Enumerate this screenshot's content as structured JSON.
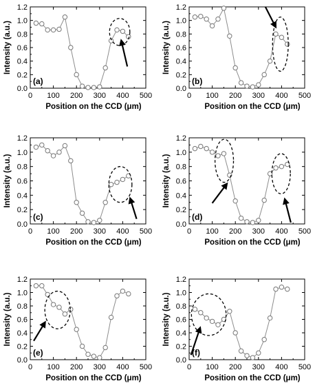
{
  "figure": {
    "tick_labels_x": [
      "0",
      "100",
      "200",
      "300",
      "400",
      "500"
    ],
    "tick_labels_y": [
      "0.0",
      "0.2",
      "0.4",
      "0.6",
      "0.8",
      "1.0",
      "1.2"
    ]
  },
  "chart_data": [
    {
      "type": "line",
      "panel_label": "(a)",
      "xlabel": "Position on the CCD (μm)",
      "ylabel": "Intensity (a.u.)",
      "xlim": [
        0,
        500
      ],
      "ylim": [
        0,
        1.2
      ],
      "grid": false,
      "series": [
        {
          "x": [
            25,
            50,
            75,
            100,
            125,
            150,
            175,
            200,
            225,
            250,
            275,
            300,
            325,
            350,
            375,
            400,
            425
          ],
          "y": [
            0.96,
            0.95,
            0.86,
            0.86,
            0.87,
            1.05,
            0.6,
            0.2,
            0.03,
            0.01,
            0.01,
            0.02,
            0.3,
            0.7,
            0.86,
            0.84,
            0.76
          ]
        }
      ],
      "annotations": [
        {
          "type": "ellipse",
          "cx": 387,
          "cy": 0.83,
          "rx": 44,
          "ry": 0.2
        },
        {
          "type": "arrow",
          "from": [
            420,
            0.32
          ],
          "to": [
            392,
            0.73
          ]
        }
      ]
    },
    {
      "type": "line",
      "panel_label": "(b)",
      "xlabel": "Position on the CCD (μm)",
      "ylabel": "Intensity (a.u.)",
      "xlim": [
        0,
        500
      ],
      "ylim": [
        0,
        1.2
      ],
      "grid": false,
      "series": [
        {
          "x": [
            25,
            50,
            75,
            100,
            125,
            150,
            175,
            200,
            225,
            250,
            275,
            300,
            325,
            350,
            375,
            400,
            425
          ],
          "y": [
            1.05,
            1.06,
            1.02,
            0.92,
            1.02,
            1.18,
            0.77,
            0.3,
            0.08,
            0.03,
            0.02,
            0.05,
            0.2,
            0.4,
            0.8,
            0.75,
            0.65
          ]
        }
      ],
      "annotations": [
        {
          "type": "ellipse",
          "cx": 395,
          "cy": 0.65,
          "rx": 34,
          "ry": 0.4
        },
        {
          "type": "arrow",
          "from": [
            330,
            1.2
          ],
          "to": [
            378,
            0.88
          ]
        }
      ]
    },
    {
      "type": "line",
      "panel_label": "(c)",
      "xlabel": "Position on the CCD (μm)",
      "ylabel": "Intensity (a.u.)",
      "xlim": [
        0,
        500
      ],
      "ylim": [
        0,
        1.2
      ],
      "grid": false,
      "series": [
        {
          "x": [
            25,
            50,
            75,
            100,
            125,
            150,
            175,
            200,
            225,
            250,
            275,
            300,
            325,
            350,
            375,
            400,
            425
          ],
          "y": [
            1.07,
            1.1,
            1.02,
            0.95,
            1.0,
            1.09,
            0.88,
            0.3,
            0.15,
            0.03,
            0.02,
            0.05,
            0.3,
            0.55,
            0.58,
            0.62,
            0.67
          ]
        }
      ],
      "annotations": [
        {
          "type": "ellipse",
          "cx": 390,
          "cy": 0.55,
          "rx": 50,
          "ry": 0.25
        },
        {
          "type": "arrow",
          "from": [
            460,
            0.07
          ],
          "to": [
            430,
            0.38
          ]
        }
      ]
    },
    {
      "type": "line",
      "panel_label": "(d)",
      "xlabel": "Position on the CCD (μm)",
      "ylabel": "Intensity (a.u.)",
      "xlim": [
        0,
        500
      ],
      "ylim": [
        0,
        1.2
      ],
      "grid": false,
      "series": [
        {
          "x": [
            25,
            50,
            75,
            100,
            125,
            150,
            175,
            200,
            225,
            250,
            275,
            300,
            325,
            350,
            375,
            400,
            425
          ],
          "y": [
            1.05,
            1.08,
            1.05,
            1.0,
            0.95,
            0.98,
            0.68,
            0.32,
            0.08,
            0.03,
            0.02,
            0.05,
            0.33,
            0.7,
            0.78,
            0.8,
            0.83
          ]
        }
      ],
      "annotations": [
        {
          "type": "ellipse",
          "cx": 152,
          "cy": 0.88,
          "rx": 40,
          "ry": 0.3
        },
        {
          "type": "arrow",
          "from": [
            100,
            0.29
          ],
          "to": [
            168,
            0.58
          ]
        },
        {
          "type": "ellipse",
          "cx": 398,
          "cy": 0.7,
          "rx": 40,
          "ry": 0.28
        },
        {
          "type": "arrow",
          "from": [
            440,
            0.02
          ],
          "to": [
            412,
            0.37
          ]
        }
      ]
    },
    {
      "type": "line",
      "panel_label": "(e)",
      "xlabel": "Position on the CCD (μm)",
      "ylabel": "Intensity (a.u.)",
      "xlim": [
        0,
        500
      ],
      "ylim": [
        0,
        1.2
      ],
      "grid": false,
      "series": [
        {
          "x": [
            25,
            50,
            75,
            100,
            125,
            150,
            175,
            200,
            225,
            250,
            275,
            300,
            325,
            350,
            375,
            400,
            425
          ],
          "y": [
            1.1,
            1.1,
            0.97,
            0.82,
            0.78,
            0.68,
            0.75,
            0.45,
            0.2,
            0.08,
            0.05,
            0.03,
            0.18,
            0.63,
            0.95,
            1.02,
            0.98
          ]
        }
      ],
      "annotations": [
        {
          "type": "ellipse",
          "cx": 118,
          "cy": 0.74,
          "rx": 55,
          "ry": 0.28
        },
        {
          "type": "arrow",
          "from": [
            15,
            0.28
          ],
          "to": [
            68,
            0.58
          ]
        }
      ]
    },
    {
      "type": "line",
      "panel_label": "(f)",
      "xlabel": "Position on the CCD (μm)",
      "ylabel": "Intensity (a.u.)",
      "xlim": [
        0,
        500
      ],
      "ylim": [
        0,
        1.2
      ],
      "grid": false,
      "series": [
        {
          "x": [
            25,
            50,
            75,
            100,
            125,
            150,
            175,
            200,
            225,
            250,
            275,
            300,
            325,
            350,
            375,
            400,
            425
          ],
          "y": [
            0.75,
            0.7,
            0.62,
            0.57,
            0.52,
            0.6,
            0.72,
            0.4,
            0.13,
            0.06,
            0.03,
            0.1,
            0.3,
            0.62,
            1.05,
            1.08,
            1.05
          ]
        }
      ],
      "annotations": [
        {
          "type": "ellipse",
          "cx": 85,
          "cy": 0.67,
          "rx": 75,
          "ry": 0.31
        },
        {
          "type": "arrow",
          "from": [
            8,
            0.07
          ],
          "to": [
            50,
            0.5
          ]
        }
      ]
    }
  ]
}
